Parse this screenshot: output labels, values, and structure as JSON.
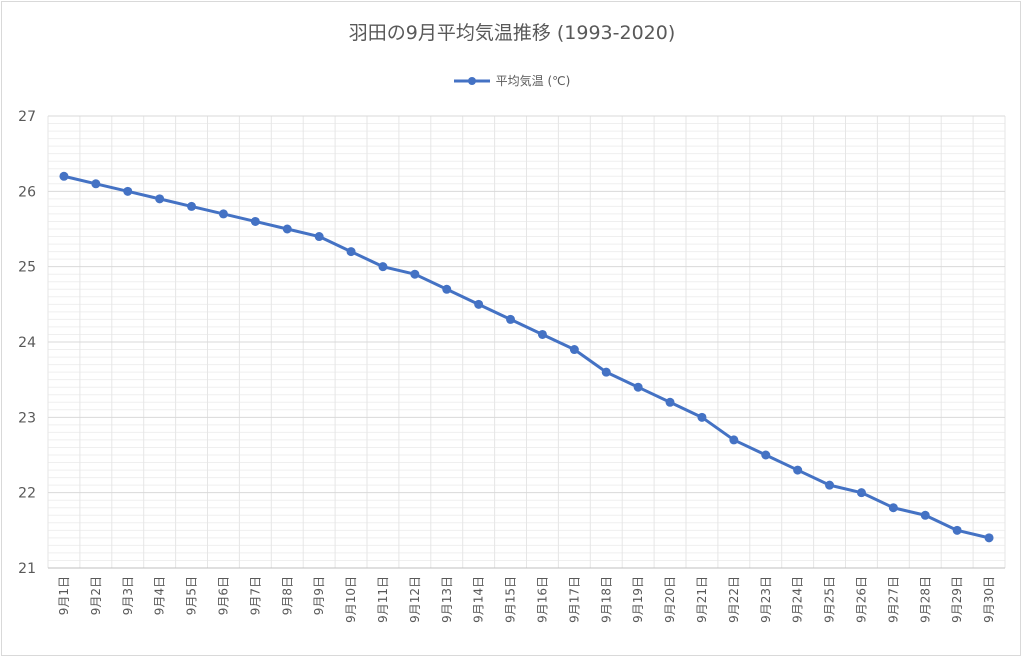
{
  "chart_data": {
    "type": "line",
    "title": "羽田の9月平均気温推移 (1993-2020)",
    "series": [
      {
        "name": "平均気温 (℃)",
        "color": "#4472C4",
        "values": [
          26.2,
          26.1,
          26.0,
          25.9,
          25.8,
          25.7,
          25.6,
          25.5,
          25.4,
          25.2,
          25.0,
          24.9,
          24.7,
          24.5,
          24.3,
          24.1,
          23.9,
          23.6,
          23.4,
          23.2,
          23.0,
          22.7,
          22.5,
          22.3,
          22.1,
          22.0,
          21.8,
          21.7,
          21.5,
          21.4
        ]
      }
    ],
    "categories": [
      "9月1日",
      "9月2日",
      "9月3日",
      "9月4日",
      "9月5日",
      "9月6日",
      "9月7日",
      "9月8日",
      "9月9日",
      "9月10日",
      "9月11日",
      "9月12日",
      "9月13日",
      "9月14日",
      "9月15日",
      "9月16日",
      "9月17日",
      "9月18日",
      "9月19日",
      "9月20日",
      "9月21日",
      "9月22日",
      "9月23日",
      "9月24日",
      "9月25日",
      "9月26日",
      "9月27日",
      "9月28日",
      "9月29日",
      "9月30日"
    ],
    "ylim": [
      21,
      27
    ],
    "yticks": [
      21,
      22,
      23,
      24,
      25,
      26,
      27
    ],
    "grid": true,
    "legend": "top-center"
  }
}
